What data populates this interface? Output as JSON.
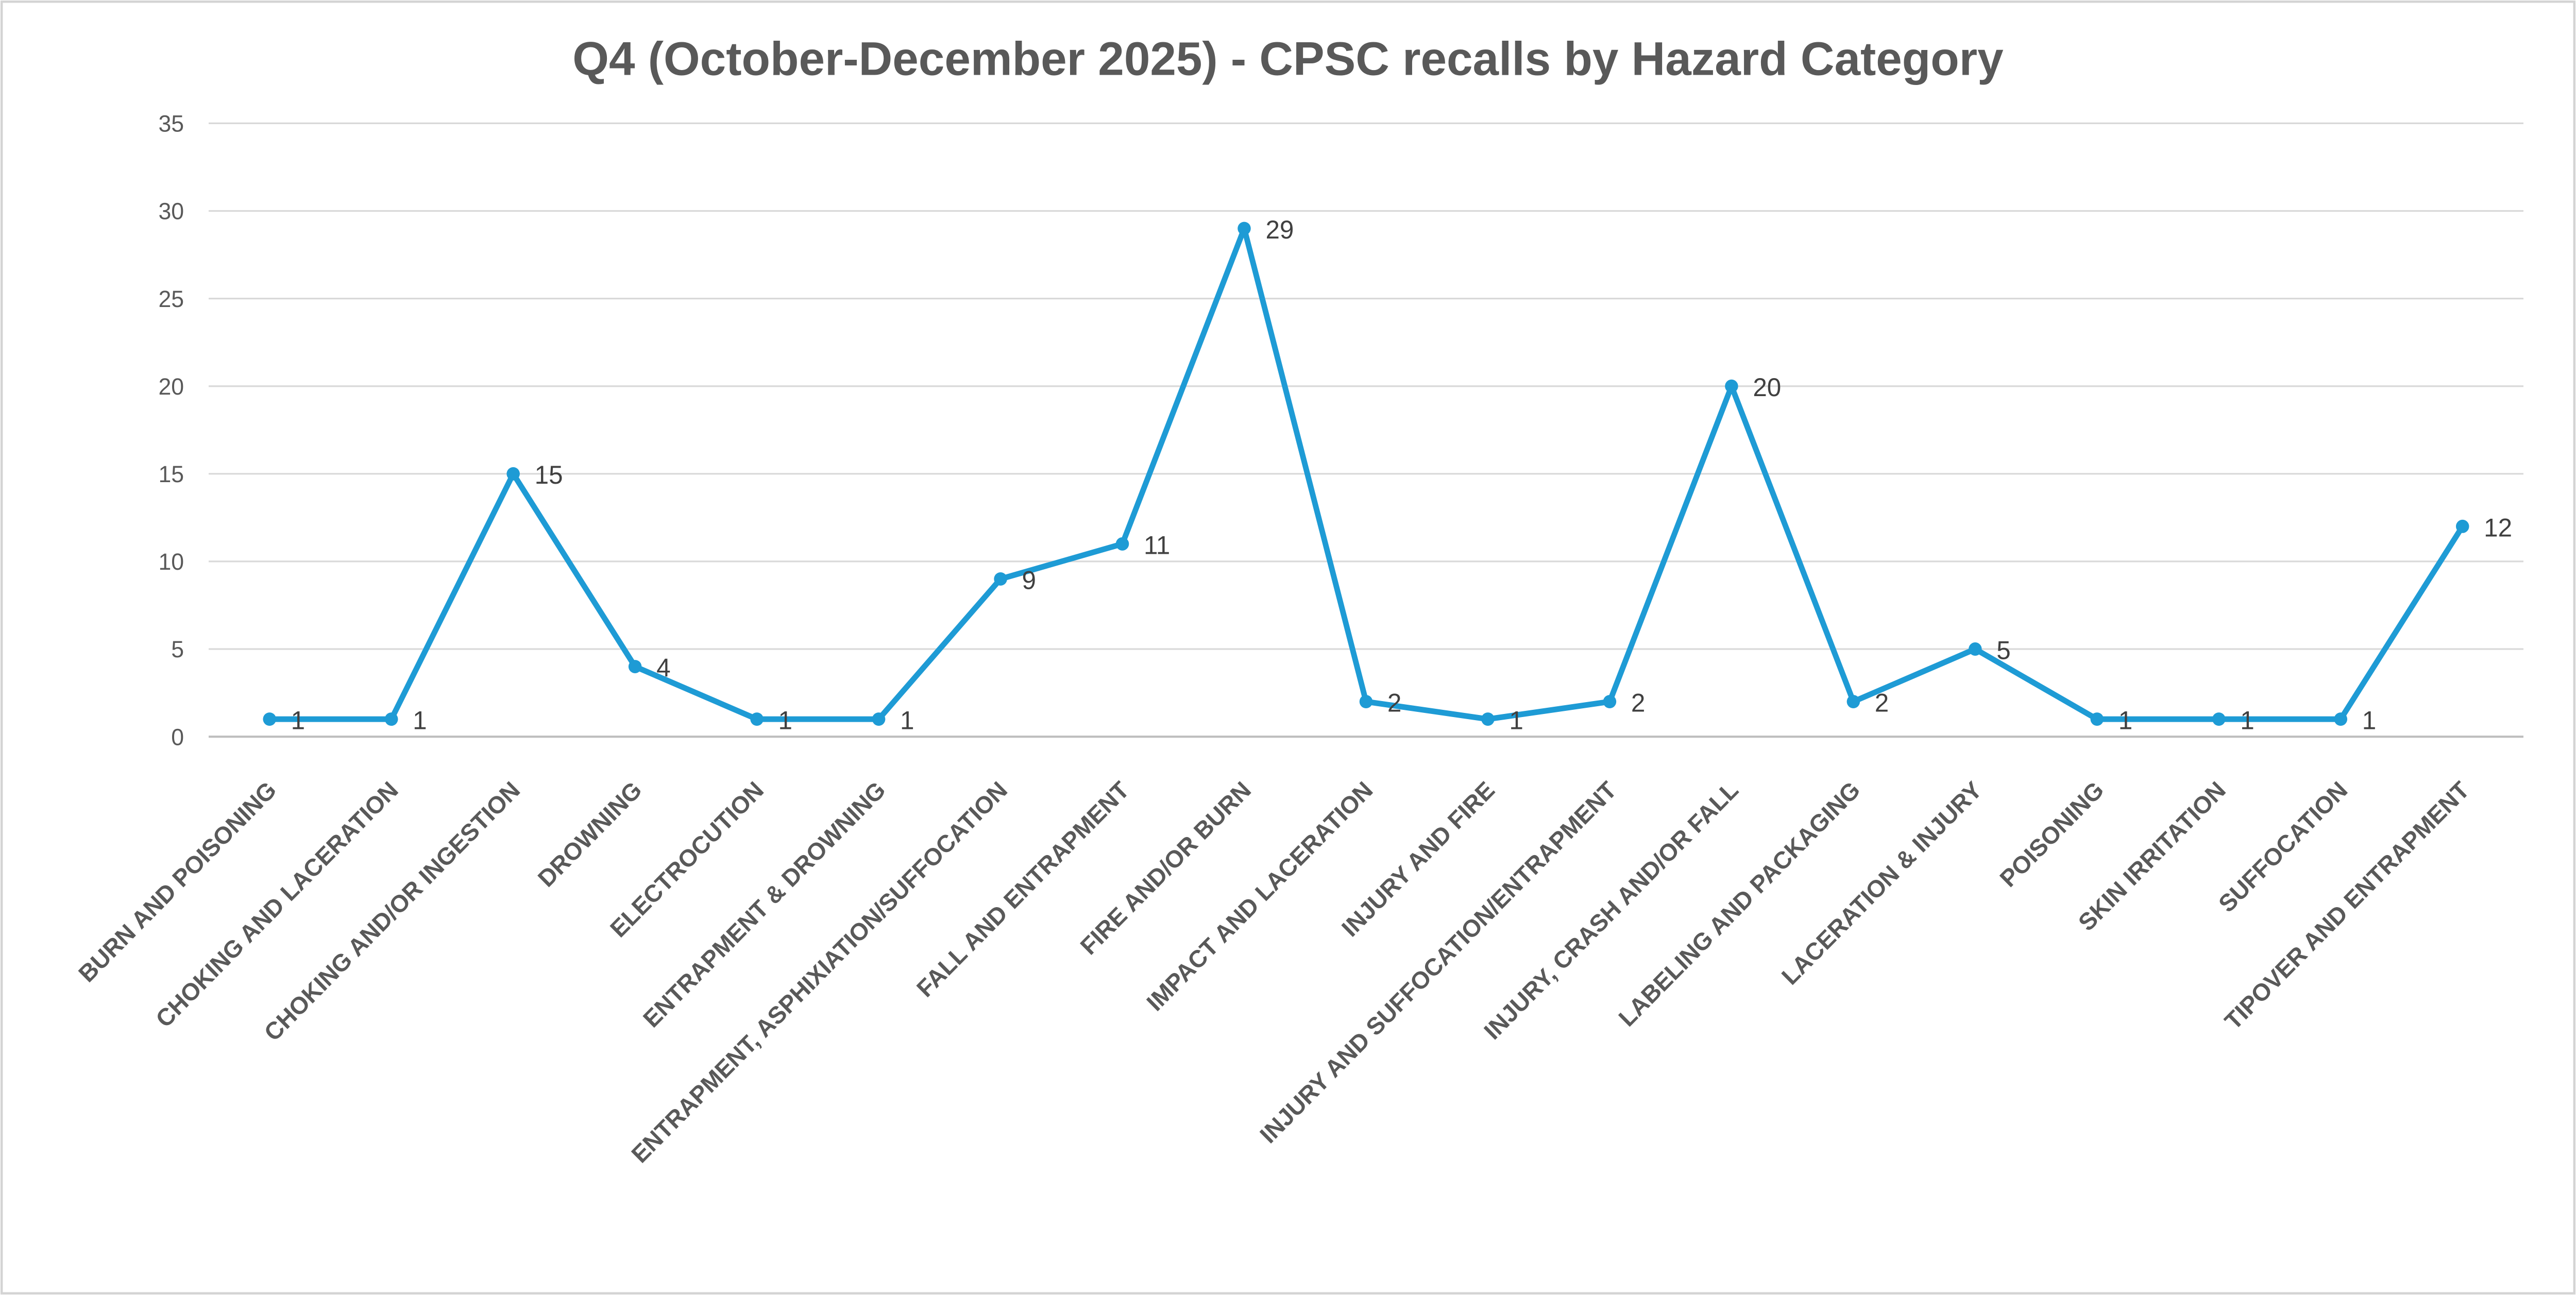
{
  "chart_data": {
    "type": "line",
    "title": "Q4 (October-December 2025) - CPSC recalls by Hazard Category",
    "categories": [
      "BURN AND POISONING",
      "CHOKING AND LACERATION",
      "CHOKING AND/OR INGESTION",
      "DROWNING",
      "ELECTROCUTION",
      "ENTRAPMENT & DROWNING",
      "ENTRAPMENT, ASPHIXIATION/SUFFOCATION",
      "FALL AND ENTRAPMENT",
      "FIRE AND/OR BURN",
      "IMPACT AND LACERATION",
      "INJURY AND FIRE",
      "INJURY AND SUFFOCATION/ENTRAPMENT",
      "INJURY, CRASH AND/OR FALL",
      "LABELING AND PACKAGING",
      "LACERATION & INJURY",
      "POISONING",
      "SKIN IRRITATION",
      "SUFFOCATION",
      "TIPOVER AND ENTRAPMENT"
    ],
    "values": [
      1,
      1,
      15,
      4,
      1,
      1,
      9,
      11,
      29,
      2,
      1,
      2,
      20,
      2,
      5,
      1,
      1,
      1,
      12
    ],
    "data_labels_shown": true,
    "markers": true,
    "xlabel": "",
    "ylabel": "",
    "ylim": [
      0,
      35
    ],
    "ytick_step": 5,
    "ytick_labels": [
      "0",
      "5",
      "10",
      "15",
      "20",
      "25",
      "30",
      "35"
    ],
    "grid": "horizontal",
    "legend": "none",
    "colors": {
      "line": "#1E9BD5",
      "marker": "#1E9BD5",
      "gridline": "#D9D9D9",
      "axis_line": "#BFBFBF",
      "data_label_text": "#404040",
      "axis_tick_text": "#595959",
      "category_text": "#595959",
      "title_text": "#595959",
      "chart_border": "#D4D4D4",
      "background": "#FFFFFF"
    }
  }
}
